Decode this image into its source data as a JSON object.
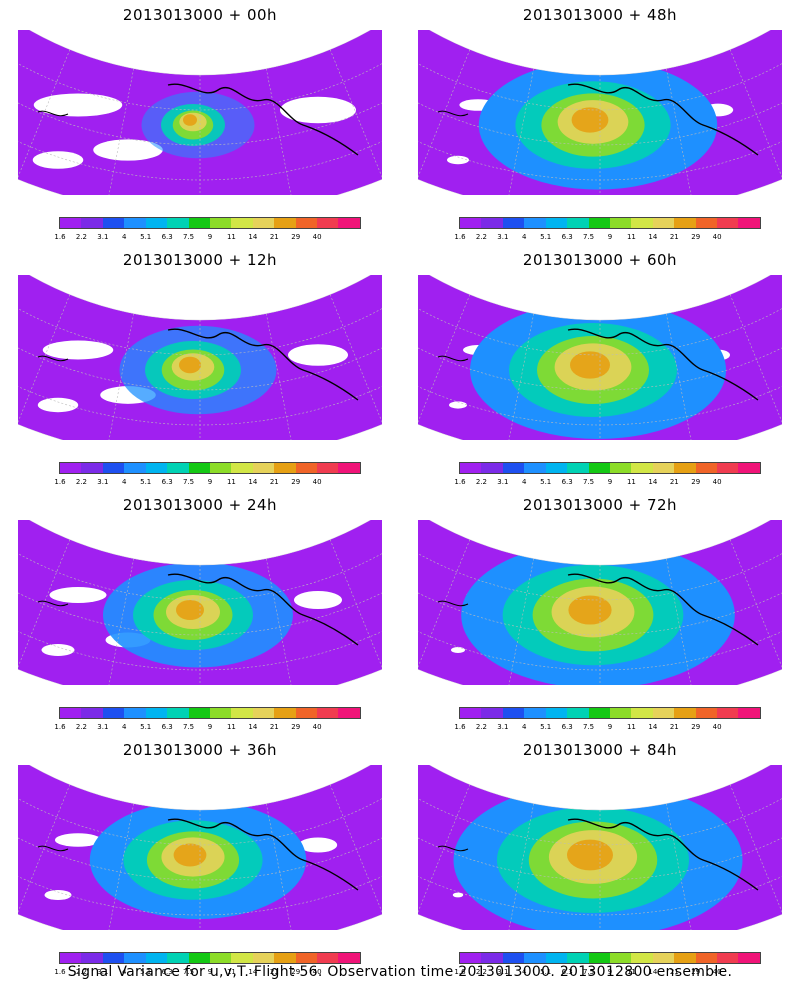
{
  "panels": [
    {
      "title": "2013013000 + 00h",
      "spread": 0.15
    },
    {
      "title": "2013013000 + 12h",
      "spread": 0.35
    },
    {
      "title": "2013013000 + 24h",
      "spread": 0.5
    },
    {
      "title": "2013013000 + 36h",
      "spread": 0.62
    },
    {
      "title": "2013013000 + 48h",
      "spread": 0.72
    },
    {
      "title": "2013013000 + 60h",
      "spread": 0.8
    },
    {
      "title": "2013013000 + 72h",
      "spread": 0.88
    },
    {
      "title": "2013013000 + 84h",
      "spread": 0.95
    }
  ],
  "colorbar": {
    "labels": [
      "1.6",
      "2.2",
      "3.1",
      "4",
      "5.1",
      "6.3",
      "7.5",
      "9",
      "11",
      "14",
      "21",
      "29",
      "40"
    ],
    "colors": [
      "#a020f0",
      "#7b2be8",
      "#1e50f0",
      "#1e90ff",
      "#00b4f0",
      "#00d2b4",
      "#14c814",
      "#8cdc28",
      "#d2e646",
      "#e6d25a",
      "#e6a014",
      "#f06428",
      "#f03c50",
      "#f01478"
    ]
  },
  "footer": "Signal Variance for u,v,T. Flight 56. Observation time 2013013000. 2013012800 ensemble."
}
